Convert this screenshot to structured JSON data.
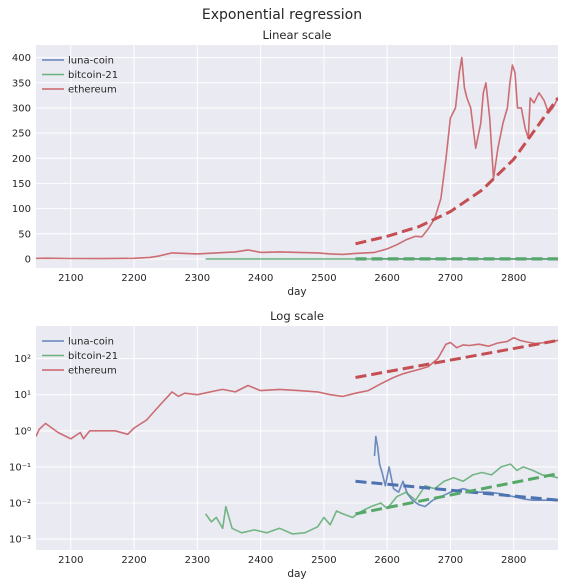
{
  "figure": {
    "title": "Exponential regression"
  },
  "colors": {
    "background": "#eaeaf2",
    "grid": "#ffffff",
    "luna": "#4c72b0",
    "bitcoin": "#55a868",
    "ethereum": "#c44e52"
  },
  "chart_data": [
    {
      "type": "line",
      "title": "Linear scale",
      "xlabel": "day",
      "ylabel": "",
      "xlim": [
        2045,
        2870
      ],
      "ylim": [
        -18,
        425
      ],
      "yscale": "linear",
      "grid": true,
      "legend": "top-left",
      "xticks": [
        2100,
        2200,
        2300,
        2400,
        2500,
        2600,
        2700,
        2800
      ],
      "xtick_labels": [
        "2100",
        "2200",
        "2300",
        "2400",
        "2500",
        "2600",
        "2700",
        "2800"
      ],
      "yticks": [
        0,
        50,
        100,
        150,
        200,
        250,
        300,
        350,
        400
      ],
      "ytick_labels": [
        "0",
        "50",
        "100",
        "150",
        "200",
        "250",
        "300",
        "350",
        "400"
      ],
      "series": [
        {
          "name": "luna-coin",
          "color": "#4c72b0",
          "x": [
            2582,
            2600,
            2650,
            2700,
            2750,
            2800,
            2850,
            2870
          ],
          "y": [
            0.5,
            0.3,
            0.02,
            0.02,
            0.02,
            0.015,
            0.012,
            0.012
          ]
        },
        {
          "name": "bitcoin-21",
          "color": "#55a868",
          "x": [
            2313,
            2400,
            2500,
            2600,
            2700,
            2750,
            2800,
            2870
          ],
          "y": [
            0.005,
            0.002,
            0.002,
            0.01,
            0.03,
            0.08,
            0.1,
            0.05
          ]
        },
        {
          "name": "ethereum",
          "color": "#c44e52",
          "x": [
            2045,
            2060,
            2100,
            2150,
            2200,
            2225,
            2240,
            2260,
            2280,
            2300,
            2330,
            2360,
            2380,
            2400,
            2430,
            2460,
            2490,
            2510,
            2530,
            2550,
            2580,
            2600,
            2615,
            2630,
            2645,
            2655,
            2665,
            2675,
            2685,
            2693,
            2700,
            2708,
            2714,
            2718,
            2722,
            2726,
            2732,
            2740,
            2748,
            2752,
            2756,
            2762,
            2768,
            2775,
            2783,
            2790,
            2794,
            2798,
            2802,
            2806,
            2812,
            2818,
            2823,
            2826,
            2832,
            2840,
            2848,
            2855,
            2862,
            2870
          ],
          "y": [
            1,
            1.5,
            0.8,
            0.7,
            1.2,
            3,
            6,
            12,
            11,
            10,
            12,
            14,
            18,
            13,
            14,
            13,
            12,
            10,
            9,
            11,
            13,
            20,
            28,
            38,
            45,
            44,
            60,
            80,
            120,
            200,
            280,
            300,
            370,
            400,
            340,
            320,
            300,
            220,
            270,
            330,
            350,
            280,
            160,
            220,
            270,
            300,
            350,
            385,
            370,
            300,
            300,
            260,
            240,
            320,
            310,
            330,
            315,
            290,
            300,
            320
          ]
        }
      ],
      "fits": [
        {
          "name": "luna-coin",
          "color": "#4c72b0",
          "x": [
            2550,
            2870
          ],
          "y": [
            0.04,
            0.012
          ]
        },
        {
          "name": "bitcoin-21",
          "color": "#55a868",
          "x": [
            2550,
            2870
          ],
          "y": [
            0.005,
            0.065
          ]
        },
        {
          "name": "ethereum",
          "color": "#c44e52",
          "x": [
            2550,
            2600,
            2650,
            2700,
            2750,
            2800,
            2870
          ],
          "y": [
            30,
            45,
            64,
            94,
            137,
            198,
            320
          ]
        }
      ]
    },
    {
      "type": "line",
      "title": "Log scale",
      "xlabel": "day",
      "ylabel": "",
      "xlim": [
        2045,
        2870
      ],
      "ylim": [
        0.0005,
        800
      ],
      "yscale": "log",
      "grid": true,
      "legend": "top-left",
      "xticks": [
        2100,
        2200,
        2300,
        2400,
        2500,
        2600,
        2700,
        2800
      ],
      "xtick_labels": [
        "2100",
        "2200",
        "2300",
        "2400",
        "2500",
        "2600",
        "2700",
        "2800"
      ],
      "yticks": [
        0.001,
        0.01,
        0.1,
        1,
        10,
        100
      ],
      "ytick_labels": [
        "10⁻³",
        "10⁻²",
        "10⁻¹",
        "10⁰",
        "10¹",
        "10²"
      ],
      "series": [
        {
          "name": "luna-coin",
          "color": "#4c72b0",
          "x": [
            2580,
            2582,
            2585,
            2588,
            2592,
            2597,
            2603,
            2610,
            2618,
            2625,
            2632,
            2640,
            2650,
            2660,
            2672,
            2685,
            2700,
            2720,
            2740,
            2760,
            2780,
            2800,
            2815,
            2830,
            2850,
            2870
          ],
          "y": [
            0.2,
            0.7,
            0.35,
            0.12,
            0.07,
            0.03,
            0.1,
            0.025,
            0.02,
            0.04,
            0.018,
            0.012,
            0.009,
            0.008,
            0.012,
            0.015,
            0.02,
            0.025,
            0.02,
            0.02,
            0.018,
            0.015,
            0.013,
            0.012,
            0.012,
            0.012
          ]
        },
        {
          "name": "bitcoin-21",
          "color": "#55a868",
          "x": [
            2313,
            2322,
            2330,
            2340,
            2345,
            2355,
            2370,
            2390,
            2410,
            2430,
            2450,
            2470,
            2490,
            2500,
            2510,
            2520,
            2530,
            2545,
            2560,
            2575,
            2590,
            2600,
            2615,
            2630,
            2645,
            2660,
            2675,
            2690,
            2705,
            2720,
            2735,
            2750,
            2765,
            2780,
            2795,
            2805,
            2815,
            2830,
            2845,
            2860,
            2870
          ],
          "y": [
            0.005,
            0.003,
            0.004,
            0.002,
            0.008,
            0.002,
            0.0015,
            0.0018,
            0.0015,
            0.002,
            0.0014,
            0.0015,
            0.0022,
            0.004,
            0.0025,
            0.006,
            0.005,
            0.004,
            0.006,
            0.008,
            0.01,
            0.007,
            0.015,
            0.02,
            0.012,
            0.03,
            0.025,
            0.04,
            0.05,
            0.04,
            0.06,
            0.07,
            0.06,
            0.1,
            0.12,
            0.08,
            0.1,
            0.08,
            0.06,
            0.055,
            0.05
          ]
        },
        {
          "name": "ethereum",
          "color": "#c44e52",
          "x": [
            2045,
            2050,
            2060,
            2080,
            2100,
            2115,
            2120,
            2130,
            2150,
            2170,
            2190,
            2200,
            2220,
            2240,
            2260,
            2270,
            2280,
            2300,
            2330,
            2340,
            2360,
            2380,
            2400,
            2430,
            2460,
            2490,
            2510,
            2530,
            2550,
            2570,
            2590,
            2610,
            2625,
            2640,
            2650,
            2665,
            2680,
            2693,
            2700,
            2710,
            2720,
            2730,
            2745,
            2760,
            2775,
            2790,
            2800,
            2810,
            2820,
            2835,
            2850,
            2870
          ],
          "y": [
            0.7,
            1.1,
            1.6,
            0.9,
            0.6,
            0.9,
            0.6,
            1.0,
            1.0,
            1.0,
            0.8,
            1.2,
            2.0,
            5.0,
            12,
            9,
            11,
            10,
            13,
            14,
            12,
            18,
            13,
            14,
            13,
            12,
            10,
            9,
            11,
            13,
            20,
            30,
            38,
            45,
            50,
            60,
            100,
            250,
            280,
            200,
            240,
            230,
            250,
            220,
            270,
            300,
            380,
            320,
            290,
            260,
            280,
            320
          ]
        }
      ],
      "fits": [
        {
          "name": "luna-coin",
          "color": "#4c72b0",
          "x": [
            2550,
            2870
          ],
          "y": [
            0.04,
            0.012
          ]
        },
        {
          "name": "bitcoin-21",
          "color": "#55a868",
          "x": [
            2550,
            2870
          ],
          "y": [
            0.005,
            0.065
          ]
        },
        {
          "name": "ethereum",
          "color": "#c44e52",
          "x": [
            2550,
            2870
          ],
          "y": [
            30,
            320
          ]
        }
      ]
    }
  ]
}
